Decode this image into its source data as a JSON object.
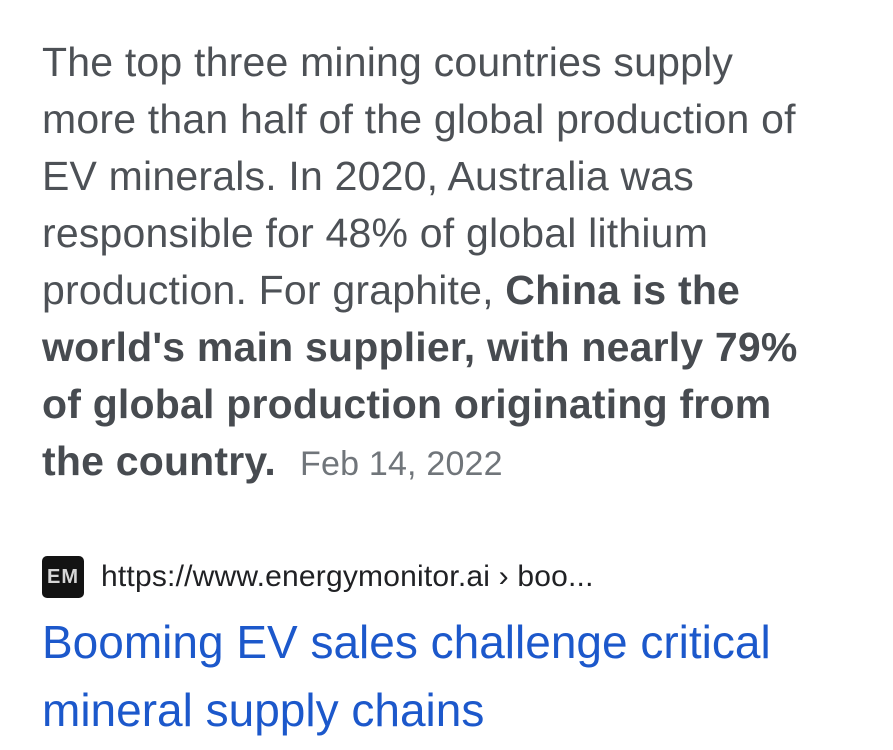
{
  "snippet": {
    "line1": "The top three mining countries supply",
    "line2": "more than half of the global production of",
    "line3": "EV minerals. In 2020, Australia was",
    "line4": "responsible for 48% of global lithium",
    "line5_normal": "production. For graphite, ",
    "line5_bold": "China is the",
    "line6_bold": "world's main supplier, with nearly 79%",
    "line7_bold": "of global production originating from",
    "line8_bold": "the country.",
    "date": "Feb 14, 2022"
  },
  "result": {
    "favicon_text": "EM",
    "url": "https://www.energymonitor.ai › boo...",
    "title_line1": "Booming EV sales challenge critical",
    "title_line2": "mineral supply chains"
  },
  "colors": {
    "background": "#ffffff",
    "body_text": "#4d5156",
    "bold_text": "#474b50",
    "date_text": "#70757a",
    "url_text": "#202124",
    "title_link": "#1c58cb",
    "favicon_bg": "#131313",
    "favicon_text": "#d6d6d6"
  }
}
